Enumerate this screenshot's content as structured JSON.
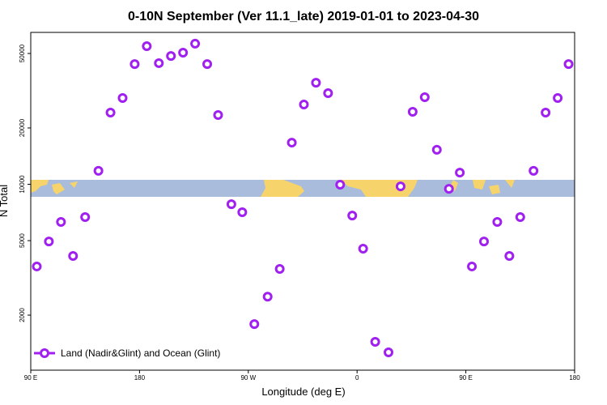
{
  "chart_data": {
    "type": "scatter",
    "title": "0-10N September (Ver 11.1_late)   2019-01-01 to 2023-04-30",
    "x_label": "Longitude (deg E)",
    "y_label": "N Total",
    "log_y": true,
    "legend_position": "lower left",
    "xlim": [
      90,
      540
    ],
    "ylim": [
      1016,
      64800
    ],
    "xticks": [
      {
        "value": 90,
        "label": "90 E"
      },
      {
        "value": 180,
        "label": "180"
      },
      {
        "value": 270,
        "label": "90 W"
      },
      {
        "value": 360,
        "label": "0"
      },
      {
        "value": 450,
        "label": "90 E"
      },
      {
        "value": 540,
        "label": "180"
      }
    ],
    "yticks": [
      2000,
      5000,
      10000,
      20000,
      50000
    ],
    "series": [
      {
        "name": "Land (Nadir&Glint) and Ocean (Glint)",
        "color": "#a020f0",
        "x": [
          95,
          105,
          115,
          125,
          135,
          146,
          156,
          166,
          176,
          186,
          196,
          206,
          216,
          226,
          236,
          245,
          256,
          265,
          275,
          286,
          296,
          306,
          316,
          326,
          336,
          346,
          356,
          365,
          375,
          386,
          396,
          406,
          416,
          426,
          436,
          445,
          455,
          465,
          476,
          486,
          495,
          506,
          516,
          526,
          535
        ],
        "values": [
          3640,
          4950,
          6290,
          4140,
          6680,
          11800,
          24150,
          28900,
          43900,
          54700,
          44400,
          48500,
          50500,
          56400,
          43900,
          23440,
          7830,
          7090,
          1790,
          2510,
          3530,
          16700,
          26700,
          34900,
          30700,
          9950,
          6810,
          4530,
          1440,
          1265,
          9750,
          24400,
          29200,
          15300,
          9460,
          11550,
          3640,
          4950,
          6290,
          4140,
          6680,
          11800,
          24150,
          28900,
          43900
        ]
      }
    ]
  }
}
